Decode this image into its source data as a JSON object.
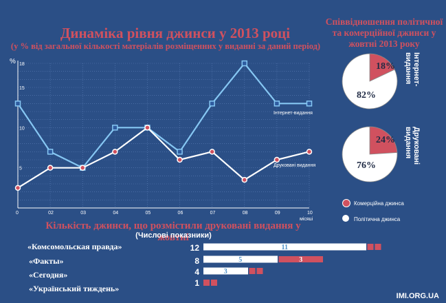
{
  "colors": {
    "background": "#2b4f86",
    "accent_red": "#d0515f",
    "internet_line": "#86c7f3",
    "print_line": "#ffffff",
    "grid": "#5c7fb8"
  },
  "line_chart": {
    "title": "Динаміка рівня джинси у 2013 році",
    "subtitle": "(у % від загальної кількості матеріалів розміщенних у виданні за даний період)",
    "y_unit": "%",
    "x_unit": "місяці",
    "series_labels": {
      "internet": "Інтернет-видання",
      "print": "Друковані видання"
    }
  },
  "pie_section": {
    "title": "Співвідношення політичної та комерційної джинси у жовтні 2013 року",
    "legend": {
      "commercial": "Комерційна джинса",
      "political": "Політична джинса"
    },
    "pies": [
      {
        "label": "Інтернет-видання",
        "commercial_text": "18%",
        "political_text": "82%"
      },
      {
        "label": "Друковані видання",
        "commercial_text": "24%",
        "political_text": "76%"
      }
    ]
  },
  "bar_section": {
    "title": "Кількість джинси, що розмістили друковані видання у жовтні",
    "subtitle": "(Числові показники)",
    "rows": [
      {
        "name": "«Комсомольская правда»",
        "total": "12"
      },
      {
        "name": "«Факты»",
        "total": "8"
      },
      {
        "name": "«Сегодня»",
        "total": "4"
      },
      {
        "name": "«Український тиждень»",
        "total": "1"
      }
    ]
  },
  "footer": "IMI.ORG.UA",
  "chart_data": [
    {
      "type": "line",
      "title": "Динаміка рівня джинси у 2013 році",
      "subtitle": "(у % від загальної кількості матеріалів розміщенних у виданні за даний період)",
      "xlabel": "місяці",
      "ylabel": "%",
      "x": [
        1,
        2,
        3,
        4,
        5,
        6,
        7,
        8,
        9,
        10
      ],
      "x_tick_labels": [
        "0",
        "02",
        "03",
        "04",
        "05",
        "06",
        "07",
        "08",
        "09",
        "10"
      ],
      "y_ticks": [
        5,
        10,
        15,
        18
      ],
      "ylim": [
        0,
        18
      ],
      "grid": true,
      "series": [
        {
          "name": "Інтернет-видання",
          "values": [
            13,
            7,
            5,
            10,
            10,
            7,
            13,
            18,
            13,
            13
          ]
        },
        {
          "name": "Друковані видання",
          "values": [
            2.5,
            5,
            5,
            7,
            10,
            6,
            7,
            3.5,
            6,
            7
          ]
        }
      ]
    },
    {
      "type": "pie",
      "title": "Співвідношення політичної та комерційної джинси у жовтні 2013 року",
      "label": "Інтернет-видання",
      "categories": [
        "Комерційна джинса",
        "Політична джинса"
      ],
      "values": [
        18,
        82
      ]
    },
    {
      "type": "pie",
      "label": "Друковані видання",
      "categories": [
        "Комерційна джинса",
        "Політична джинса"
      ],
      "values": [
        24,
        76
      ]
    },
    {
      "type": "bar",
      "title": "Кількість джинси, що розмістили друковані видання у жовтні",
      "subtitle": "(Числові показники)",
      "categories": [
        "«Комсомольская правда»",
        "«Факты»",
        "«Сегодня»",
        "«Український тиждень»"
      ],
      "totals": [
        12,
        8,
        4,
        1
      ],
      "series": [
        {
          "name": "Політична джинса",
          "values": [
            11,
            5,
            3,
            0
          ],
          "labels": [
            "11",
            "5",
            "3",
            ""
          ]
        },
        {
          "name": "Комерційна джинса",
          "values": [
            1,
            3,
            1,
            1
          ],
          "labels": [
            "",
            "3",
            "",
            ""
          ]
        }
      ]
    }
  ]
}
